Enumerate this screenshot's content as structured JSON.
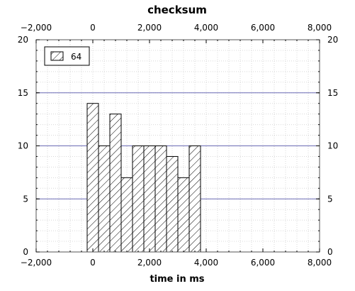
{
  "chart_data": {
    "type": "bar",
    "title": "checksum",
    "xlabel": "time in ms",
    "ylabel": "",
    "xlim": [
      -2000,
      8000
    ],
    "ylim": [
      0,
      20
    ],
    "x_ticks": [
      -2000,
      0,
      2000,
      4000,
      6000,
      8000
    ],
    "x_tick_labels": [
      "−2,000",
      "0",
      "2,000",
      "4,000",
      "6,000",
      "8,000"
    ],
    "y_ticks": [
      0,
      5,
      10,
      15,
      20
    ],
    "y_tick_labels": [
      "0",
      "5",
      "10",
      "15",
      "20"
    ],
    "grid": true,
    "legend_position": "top-left",
    "series": [
      {
        "name": "64",
        "pattern": "diagonal-hatch",
        "color": "#000000",
        "bins": [
          {
            "start": -200,
            "end": 200,
            "value": 14
          },
          {
            "start": 200,
            "end": 600,
            "value": 10
          },
          {
            "start": 600,
            "end": 1000,
            "value": 13
          },
          {
            "start": 1000,
            "end": 1400,
            "value": 7
          },
          {
            "start": 1400,
            "end": 1800,
            "value": 10
          },
          {
            "start": 1800,
            "end": 2200,
            "value": 10
          },
          {
            "start": 2200,
            "end": 2600,
            "value": 10
          },
          {
            "start": 2600,
            "end": 3000,
            "value": 9
          },
          {
            "start": 3000,
            "end": 3400,
            "value": 7
          },
          {
            "start": 3400,
            "end": 3800,
            "value": 10
          }
        ]
      }
    ],
    "grid_color": "#6b6bb5"
  }
}
